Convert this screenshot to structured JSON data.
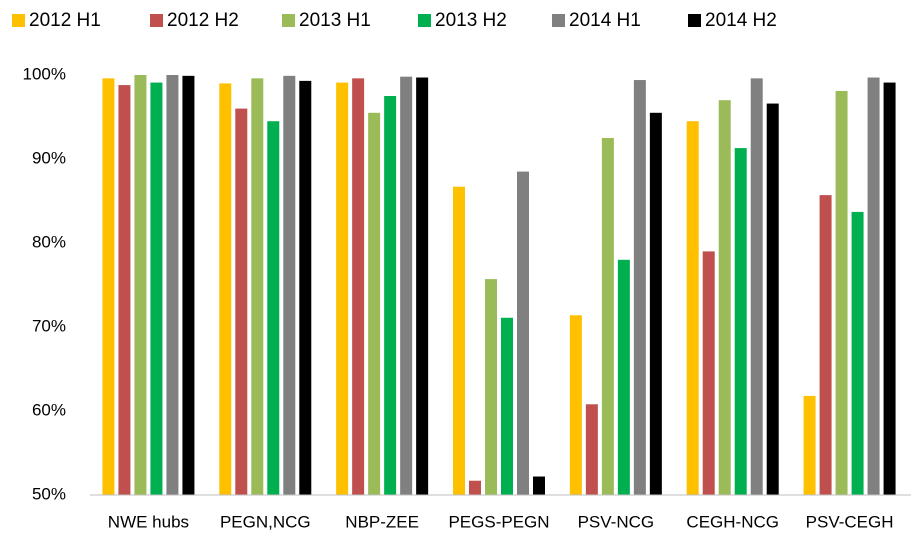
{
  "chart_data": {
    "type": "bar",
    "categories": [
      "NWE hubs",
      "PEGN,NCG",
      "NBP-ZEE",
      "PEGS-PEGN",
      "PSV-NCG",
      "CEGH-NCG",
      "PSV-CEGH"
    ],
    "series": [
      {
        "name": "2012 H1",
        "color": "#FFC000",
        "values": [
          99.6,
          99.0,
          99.1,
          86.7,
          71.4,
          94.5,
          61.8
        ]
      },
      {
        "name": "2012 H2",
        "color": "#C0504D",
        "values": [
          98.8,
          96.0,
          99.6,
          51.7,
          60.8,
          79.0,
          85.7
        ]
      },
      {
        "name": "2013 H1",
        "color": "#9BBB59",
        "values": [
          100,
          99.6,
          95.5,
          75.7,
          92.5,
          97.0,
          98.1
        ]
      },
      {
        "name": "2013 H2",
        "color": "#00B050",
        "values": [
          99.1,
          94.5,
          97.5,
          71.1,
          78.0,
          91.3,
          83.7
        ]
      },
      {
        "name": "2014 H1",
        "color": "#808080",
        "values": [
          100,
          99.9,
          99.8,
          88.5,
          99.4,
          99.6,
          99.7
        ]
      },
      {
        "name": "2014 H2",
        "color": "#000000",
        "values": [
          99.9,
          99.3,
          99.7,
          52.2,
          95.5,
          96.6,
          99.1
        ]
      }
    ],
    "ylim": [
      50,
      100
    ],
    "yticks": [
      {
        "value": 50,
        "label": "50%"
      },
      {
        "value": 60,
        "label": "60%"
      },
      {
        "value": 70,
        "label": "70%"
      },
      {
        "value": 80,
        "label": "80%"
      },
      {
        "value": 90,
        "label": "90%"
      },
      {
        "value": 100,
        "label": "100%"
      }
    ],
    "grid": false,
    "legend": "top"
  }
}
